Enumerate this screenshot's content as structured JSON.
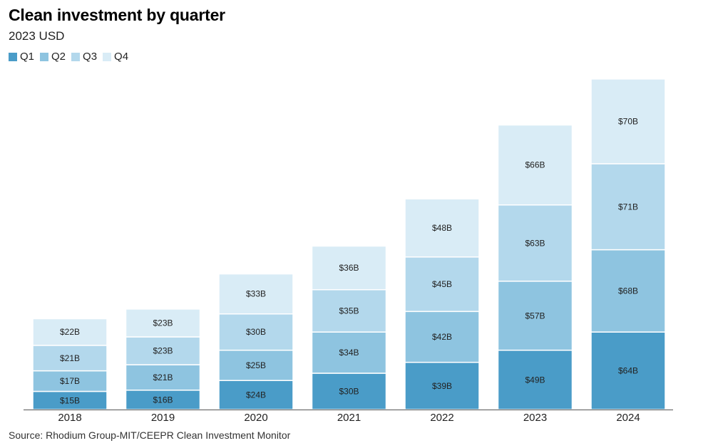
{
  "title": "Clean investment by quarter",
  "subtitle": "2023 USD",
  "source": "Source: Rhodium Group-MIT/CEEPR Clean Investment Monitor",
  "colors": {
    "Q1": "#4a9cc8",
    "Q2": "#8ec4e0",
    "Q3": "#b3d8ec",
    "Q4": "#d9ecf6"
  },
  "chart_data": {
    "type": "bar",
    "stacked": true,
    "title": "Clean investment by quarter",
    "subtitle": "2023 USD",
    "categories": [
      "2018",
      "2019",
      "2020",
      "2021",
      "2022",
      "2023",
      "2024"
    ],
    "series": [
      {
        "name": "Q1",
        "values": [
          15,
          16,
          24,
          30,
          39,
          49,
          64
        ],
        "labels": [
          "$15B",
          "$16B",
          "$24B",
          "$30B",
          "$39B",
          "$49B",
          "$64B"
        ]
      },
      {
        "name": "Q2",
        "values": [
          17,
          21,
          25,
          34,
          42,
          57,
          68
        ],
        "labels": [
          "$17B",
          "$21B",
          "$25B",
          "$34B",
          "$42B",
          "$57B",
          "$68B"
        ]
      },
      {
        "name": "Q3",
        "values": [
          21,
          23,
          30,
          35,
          45,
          63,
          71
        ],
        "labels": [
          "$21B",
          "$23B",
          "$30B",
          "$35B",
          "$45B",
          "$63B",
          "$71B"
        ]
      },
      {
        "name": "Q4",
        "values": [
          22,
          23,
          33,
          36,
          48,
          66,
          70
        ],
        "labels": [
          "$22B",
          "$23B",
          "$33B",
          "$36B",
          "$48B",
          "$66B",
          "$70B"
        ]
      }
    ],
    "legend": "top-left",
    "grid": false
  }
}
